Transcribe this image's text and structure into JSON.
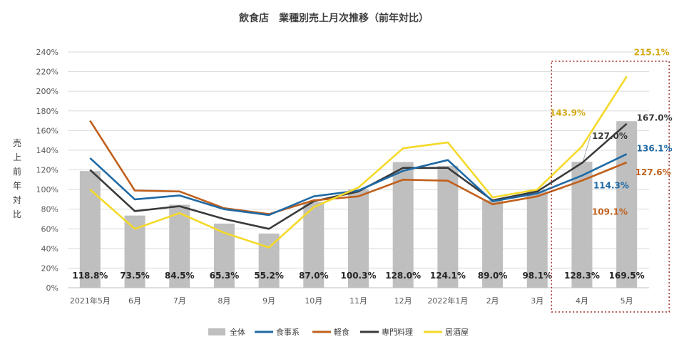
{
  "chart_data": {
    "type": "bar+line",
    "title": "飲食店　業種別売上月次推移（前年対比）",
    "ylabel": "売上前年対比",
    "ylim": [
      0,
      240
    ],
    "yticks": [
      "0%",
      "20%",
      "40%",
      "60%",
      "80%",
      "100%",
      "120%",
      "140%",
      "160%",
      "180%",
      "200%",
      "220%",
      "240%"
    ],
    "categories": [
      "2021年5月",
      "6月",
      "7月",
      "8月",
      "9月",
      "10月",
      "11月",
      "12月",
      "2022年1月",
      "2月",
      "3月",
      "4月",
      "5月"
    ],
    "bar_series": {
      "name": "全体",
      "values": [
        118.8,
        73.5,
        84.5,
        65.3,
        55.2,
        87.0,
        100.3,
        128.0,
        124.1,
        89.0,
        98.1,
        128.3,
        169.5
      ],
      "labels": [
        "118.8%",
        "73.5%",
        "84.5%",
        "65.3%",
        "55.2%",
        "87.0%",
        "100.3%",
        "128.0%",
        "124.1%",
        "89.0%",
        "98.1%",
        "128.3%",
        "169.5%"
      ],
      "color": "#bfbfbf"
    },
    "series": [
      {
        "name": "食事系",
        "color": "#1f6aa5",
        "values": [
          132,
          90,
          94,
          80,
          74,
          93,
          99,
          119,
          130,
          88,
          96,
          114.3,
          136.1
        ],
        "annotations": [
          {
            "index": 11,
            "text": "114.3%"
          },
          {
            "index": 12,
            "text": "136.1%"
          }
        ]
      },
      {
        "name": "軽食",
        "color": "#c0601d",
        "values": [
          170,
          99,
          98,
          81,
          75,
          89,
          93,
          110,
          109,
          85,
          93,
          109.1,
          127.6
        ],
        "annotations": [
          {
            "index": 11,
            "text": "109.1%"
          },
          {
            "index": 12,
            "text": "127.6%"
          }
        ]
      },
      {
        "name": "専門料理",
        "color": "#3a3a3a",
        "values": [
          120,
          78,
          83,
          70,
          60,
          88,
          98,
          122,
          122,
          89,
          98,
          127.0,
          167.0
        ],
        "annotations": [
          {
            "index": 11,
            "text": "127.0%"
          },
          {
            "index": 12,
            "text": "167.0%"
          }
        ]
      },
      {
        "name": "居酒屋",
        "color": "#f5d928",
        "values": [
          100,
          60,
          76,
          56,
          41,
          82,
          102,
          142,
          148,
          92,
          100,
          143.9,
          215.1
        ],
        "annotations": [
          {
            "index": 11,
            "text": "143.9%"
          },
          {
            "index": 12,
            "text": "215.1%"
          }
        ]
      }
    ],
    "highlight": {
      "from_index": 11,
      "to_index": 12,
      "color": "#9e2a2b"
    },
    "legend": {
      "position": "bottom"
    }
  }
}
